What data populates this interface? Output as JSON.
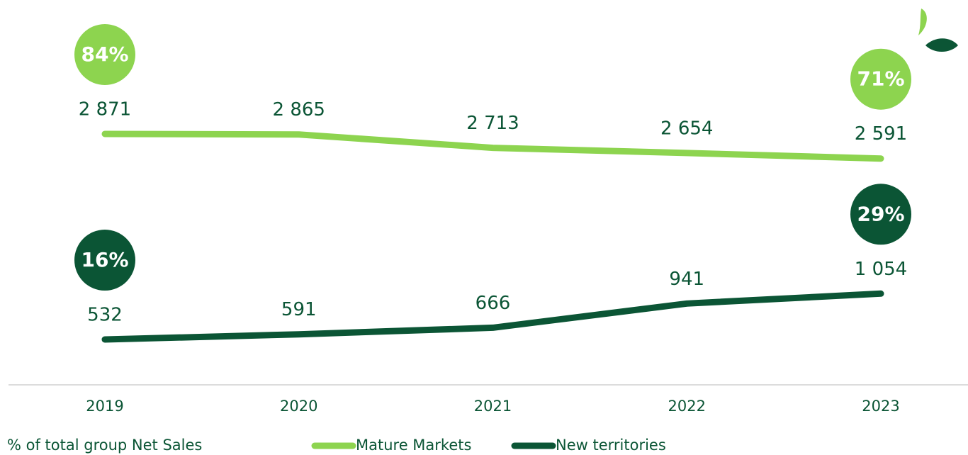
{
  "chart_data": {
    "type": "line",
    "categories": [
      "2019",
      "2020",
      "2021",
      "2022",
      "2023"
    ],
    "series": [
      {
        "name": "Mature Markets",
        "color": "#8dd44f",
        "values": [
          2871,
          2865,
          2713,
          2654,
          2591
        ],
        "value_labels": [
          "2 871",
          "2 865",
          "2 713",
          "2 654",
          "2 591"
        ],
        "shares": [
          {
            "index": 0,
            "value": 84,
            "label": "84%"
          },
          {
            "index": 4,
            "value": 71,
            "label": "71%"
          }
        ]
      },
      {
        "name": "New territories",
        "color": "#0b5535",
        "values": [
          532,
          591,
          666,
          941,
          1054
        ],
        "value_labels": [
          "532",
          "591",
          "666",
          "941",
          "1 054"
        ],
        "shares": [
          {
            "index": 0,
            "value": 16,
            "label": "16%"
          },
          {
            "index": 4,
            "value": 29,
            "label": "29%"
          }
        ]
      }
    ],
    "ylim": [
      0,
      3500
    ],
    "note": "% of total group Net Sales"
  }
}
